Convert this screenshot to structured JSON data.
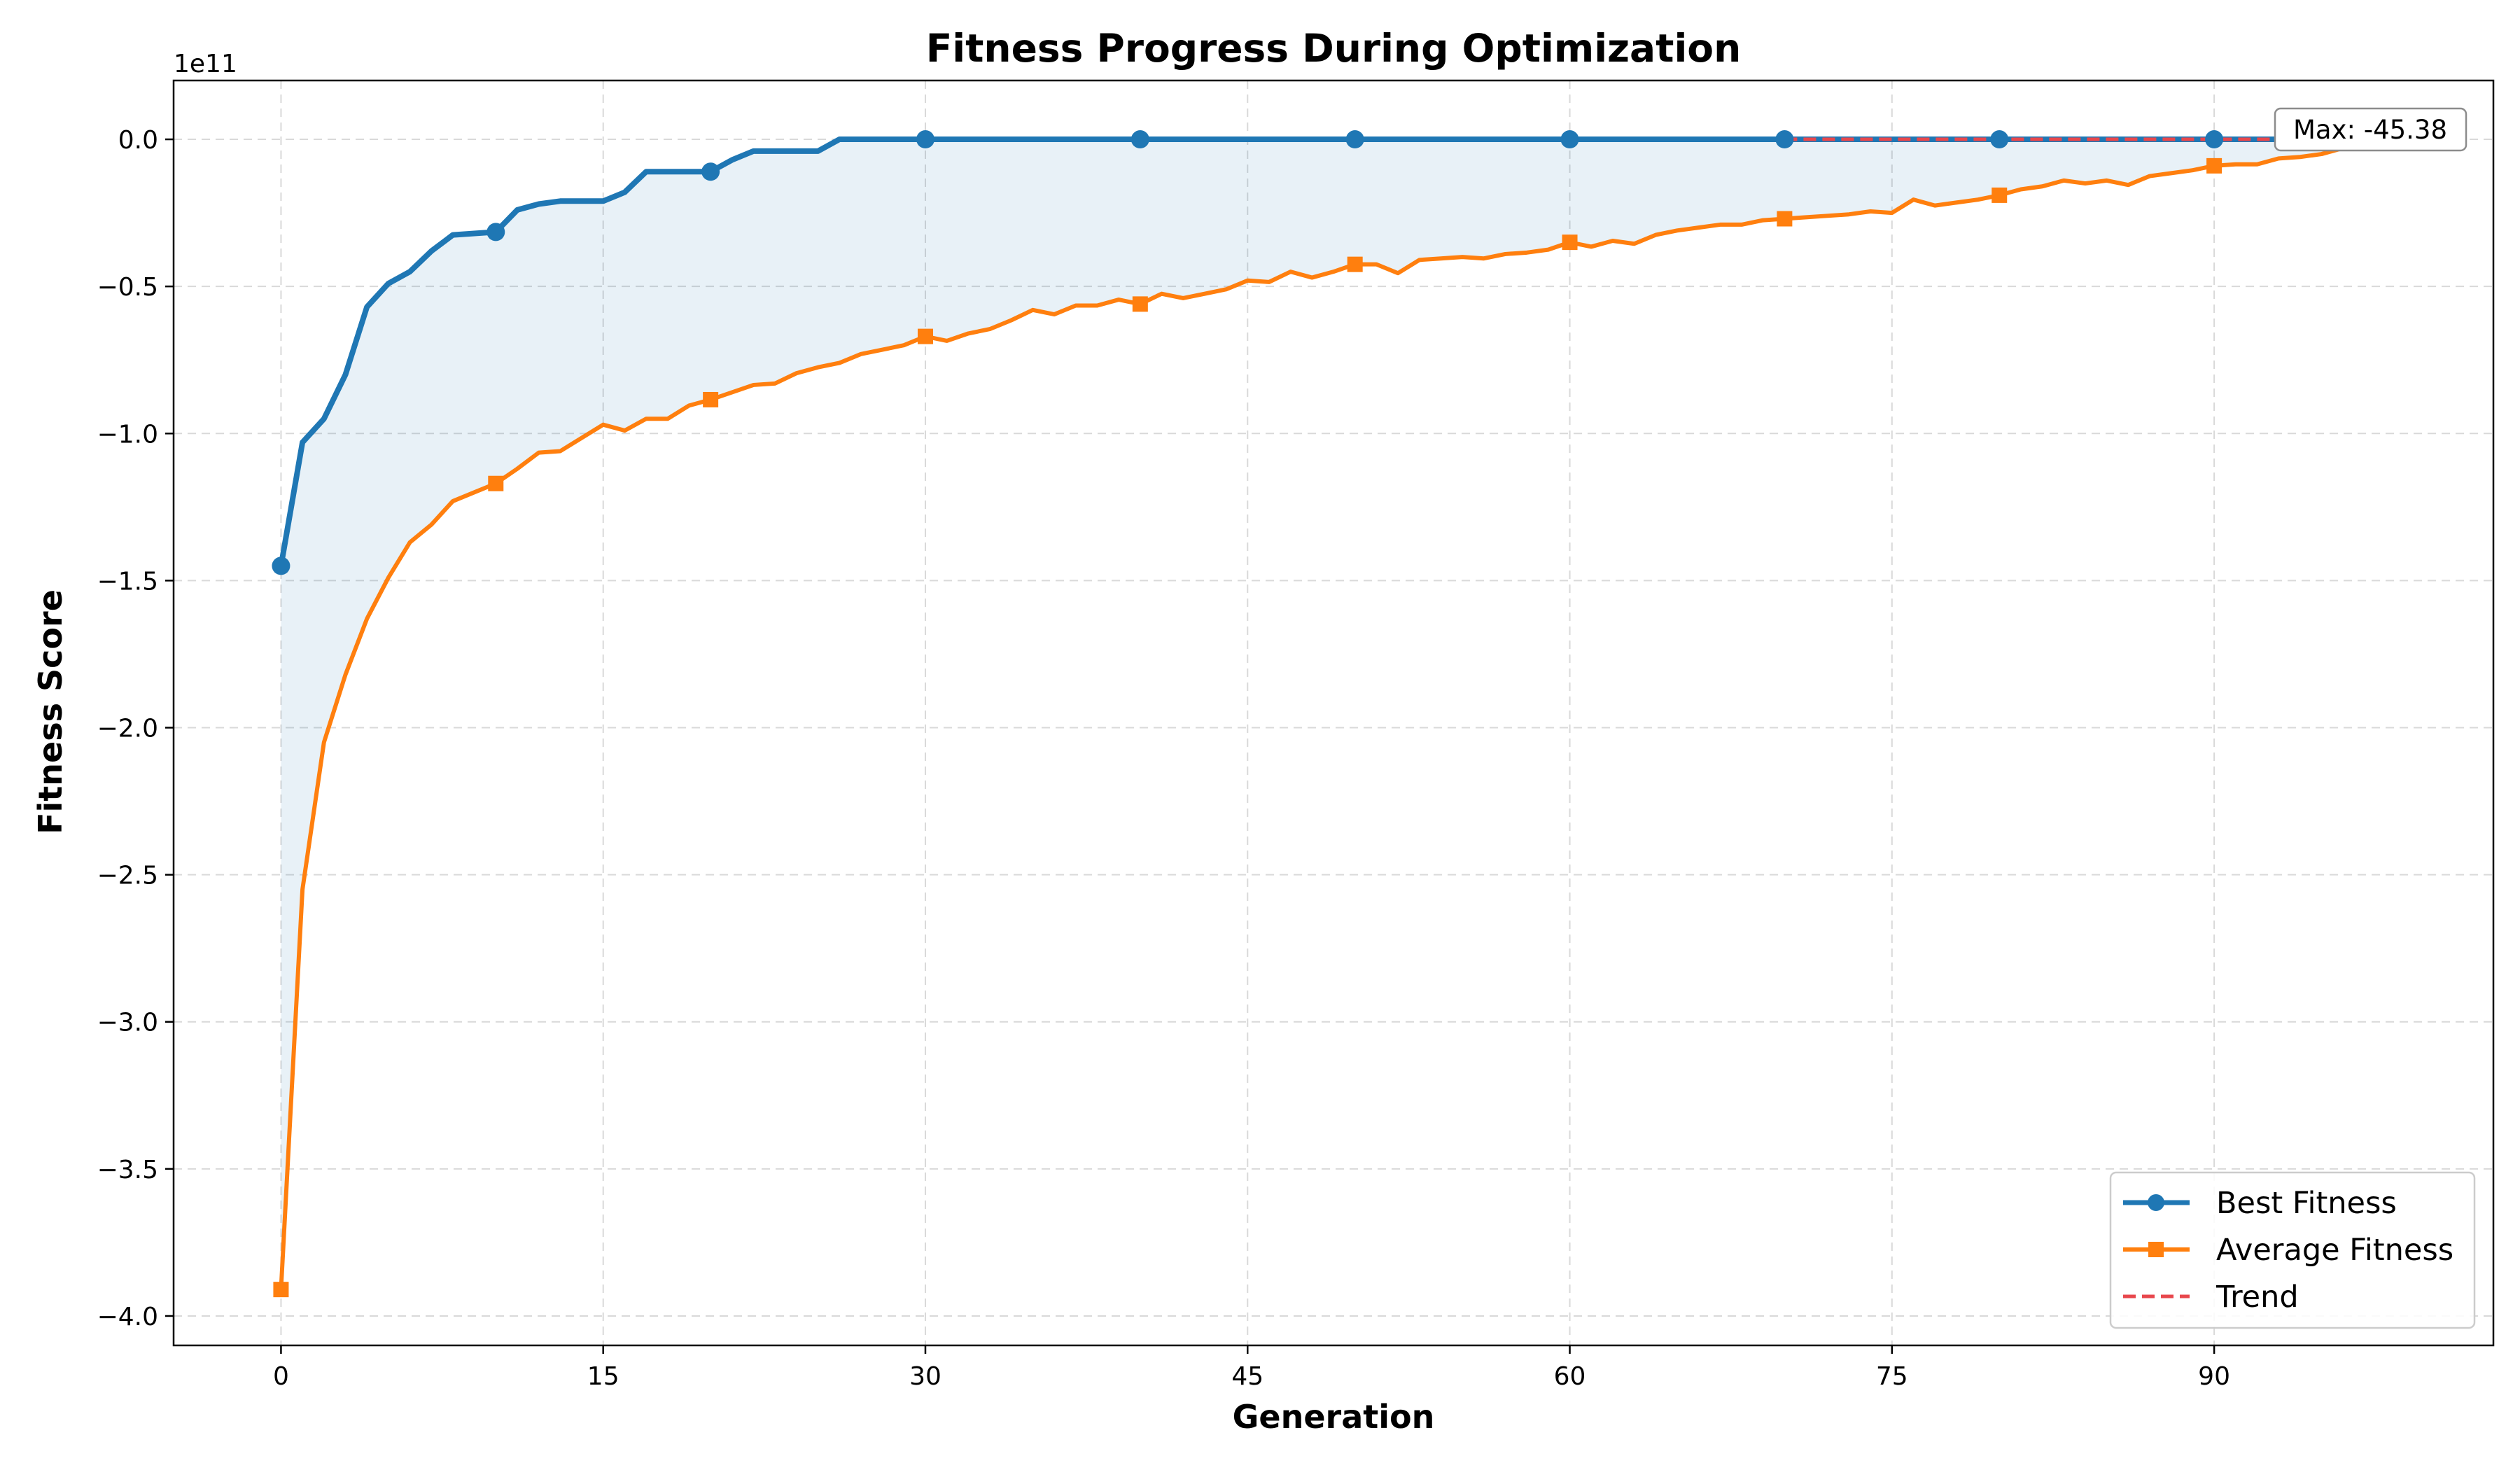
{
  "chart_data": {
    "type": "line",
    "title": "Fitness Progress During Optimization",
    "xlabel": "Generation",
    "ylabel": "Fitness Score",
    "y_scale_label": "1e11",
    "y_scale_factor": 100000000000.0,
    "xlim": [
      -5,
      103
    ],
    "ylim": [
      -4.1,
      0.2
    ],
    "xticks": [
      0,
      15,
      30,
      45,
      60,
      75,
      90
    ],
    "xtick_labels": [
      "0",
      "15",
      "30",
      "45",
      "60",
      "75",
      "90"
    ],
    "yticks": [
      0.0,
      -0.5,
      -1.0,
      -1.5,
      -2.0,
      -2.5,
      -3.0,
      -3.5,
      -4.0
    ],
    "ytick_labels": [
      "0.0",
      "−0.5",
      "−1.0",
      "−1.5",
      "−2.0",
      "−2.5",
      "−3.0",
      "−3.5",
      "−4.0"
    ],
    "grid": true,
    "legend_position": "lower-right",
    "fill_between_series": true,
    "annotation": {
      "text": "Max: -45.38",
      "x": 99,
      "y": 0.0
    },
    "series": [
      {
        "name": "Best Fitness",
        "color": "#1f77b4",
        "marker": "circle",
        "marker_every": 10,
        "x": [
          0,
          1,
          2,
          3,
          4,
          5,
          6,
          7,
          8,
          9,
          10,
          11,
          12,
          13,
          14,
          15,
          16,
          17,
          18,
          19,
          20,
          21,
          22,
          23,
          24,
          25,
          26,
          27,
          28,
          29,
          30,
          40,
          50,
          60,
          70,
          80,
          90,
          99
        ],
        "values": [
          -1.45,
          -1.03,
          -0.95,
          -0.8,
          -0.57,
          -0.49,
          -0.45,
          -0.38,
          -0.325,
          -0.32,
          -0.315,
          -0.24,
          -0.22,
          -0.21,
          -0.21,
          -0.21,
          -0.18,
          -0.11,
          -0.11,
          -0.11,
          -0.11,
          -0.07,
          -0.04,
          -0.04,
          -0.04,
          -0.04,
          0.0,
          0.0,
          0.0,
          0.0,
          0.0,
          0.0,
          0.0,
          0.0,
          0.0,
          0.0,
          0.0,
          0.0
        ]
      },
      {
        "name": "Average Fitness",
        "color": "#ff7f0e",
        "marker": "square",
        "marker_every": 10,
        "x": [
          0,
          1,
          2,
          3,
          4,
          5,
          6,
          7,
          8,
          9,
          10,
          11,
          12,
          13,
          14,
          15,
          16,
          17,
          18,
          19,
          20,
          21,
          22,
          23,
          24,
          25,
          26,
          27,
          28,
          29,
          30,
          31,
          32,
          33,
          34,
          35,
          36,
          37,
          38,
          39,
          40,
          41,
          42,
          43,
          44,
          45,
          46,
          47,
          48,
          49,
          50,
          51,
          52,
          53,
          54,
          55,
          56,
          57,
          58,
          59,
          60,
          61,
          62,
          63,
          64,
          65,
          66,
          67,
          68,
          69,
          70,
          71,
          72,
          73,
          74,
          75,
          76,
          77,
          78,
          79,
          80,
          81,
          82,
          83,
          84,
          85,
          86,
          87,
          88,
          89,
          90,
          91,
          92,
          93,
          94,
          95,
          96,
          97,
          98,
          99
        ],
        "values": [
          -3.91,
          -2.55,
          -2.05,
          -1.82,
          -1.63,
          -1.49,
          -1.37,
          -1.31,
          -1.23,
          -1.2,
          -1.17,
          -1.12,
          -1.065,
          -1.06,
          -1.015,
          -0.97,
          -0.99,
          -0.95,
          -0.95,
          -0.905,
          -0.885,
          -0.86,
          -0.835,
          -0.83,
          -0.795,
          -0.775,
          -0.76,
          -0.73,
          -0.715,
          -0.7,
          -0.67,
          -0.685,
          -0.66,
          -0.645,
          -0.615,
          -0.58,
          -0.595,
          -0.565,
          -0.565,
          -0.545,
          -0.56,
          -0.525,
          -0.54,
          -0.525,
          -0.51,
          -0.48,
          -0.485,
          -0.45,
          -0.47,
          -0.45,
          -0.425,
          -0.425,
          -0.455,
          -0.41,
          -0.405,
          -0.4,
          -0.405,
          -0.39,
          -0.385,
          -0.375,
          -0.35,
          -0.365,
          -0.345,
          -0.355,
          -0.325,
          -0.31,
          -0.3,
          -0.29,
          -0.29,
          -0.275,
          -0.27,
          -0.265,
          -0.26,
          -0.255,
          -0.245,
          -0.25,
          -0.205,
          -0.225,
          -0.215,
          -0.205,
          -0.19,
          -0.17,
          -0.16,
          -0.14,
          -0.15,
          -0.14,
          -0.155,
          -0.125,
          -0.115,
          -0.105,
          -0.09,
          -0.085,
          -0.085,
          -0.065,
          -0.06,
          -0.05,
          -0.03,
          -0.025,
          -0.015,
          -0.01
        ]
      },
      {
        "name": "Trend",
        "color": "#e8474c",
        "style": "dashed",
        "x": [
          70,
          99
        ],
        "values": [
          0.0,
          0.0
        ]
      }
    ]
  }
}
